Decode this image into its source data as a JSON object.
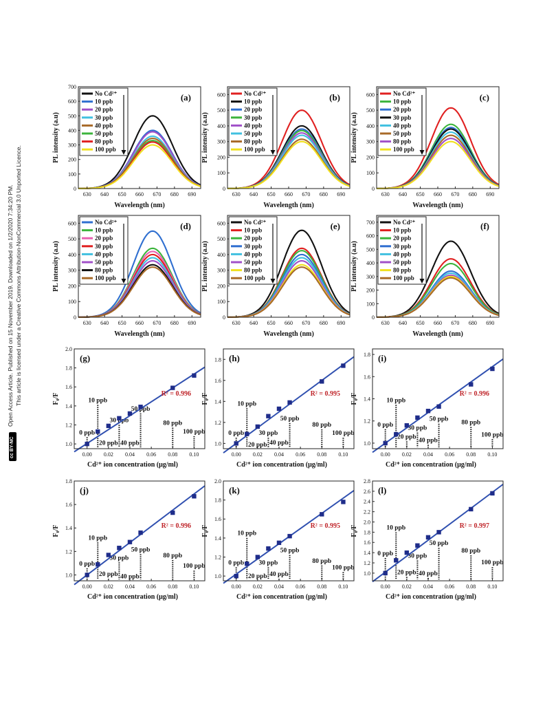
{
  "sidebar": {
    "line1": "Open Access Article. Published on 15 November 2019. Downloaded on 1/2/2020 7:34:20 PM.",
    "line2": "This article is licensed under a Creative Commons Attribution-NonCommercial 3.0 Unported Licence.",
    "badge": "cc BY-NC"
  },
  "colors": {
    "black": "#111111",
    "red": "#e02020",
    "blue": "#2f6fd0",
    "green": "#3cb43c",
    "purple": "#a050c8",
    "cyan": "#40c0e0",
    "brown": "#a86a28",
    "yellow": "#f0e020",
    "pink": "#e860b0",
    "fit": "#3050b0",
    "marker": "#1f2d8a",
    "r2": "#c0282d"
  },
  "chart_data": [
    {
      "type": "line",
      "panel": "(a)",
      "xlabel": "Wavelength (nm)",
      "ylabel": "PL intensity (a.u)",
      "xlim": [
        625,
        695
      ],
      "ylim": [
        0,
        700
      ],
      "xticks": [
        630,
        640,
        650,
        660,
        670,
        680,
        690
      ],
      "yticks": [
        0,
        100,
        200,
        300,
        400,
        500,
        600,
        700
      ],
      "legend_position": "top-left",
      "series": [
        {
          "name": "No Cd²⁺",
          "color": "black",
          "peak": 500
        },
        {
          "name": "10 ppb",
          "color": "blue",
          "peak": 400
        },
        {
          "name": "20 ppb",
          "color": "purple",
          "peak": 390
        },
        {
          "name": "30 ppb",
          "color": "cyan",
          "peak": 360
        },
        {
          "name": "40 ppb",
          "color": "brown",
          "peak": 345
        },
        {
          "name": "50 ppb",
          "color": "green",
          "peak": 330
        },
        {
          "name": "80 ppb",
          "color": "red",
          "peak": 320
        },
        {
          "name": "100 ppb",
          "color": "yellow",
          "peak": 300
        }
      ]
    },
    {
      "type": "line",
      "panel": "(b)",
      "xlabel": "Wavelength (nm)",
      "ylabel": "PL intensity (a.u)",
      "xlim": [
        625,
        695
      ],
      "ylim": [
        0,
        650
      ],
      "xticks": [
        630,
        640,
        650,
        660,
        670,
        680,
        690
      ],
      "yticks": [
        0,
        100,
        200,
        300,
        400,
        500,
        600
      ],
      "legend_position": "top-left",
      "series": [
        {
          "name": "No Cd²⁺",
          "color": "red",
          "peak": 500
        },
        {
          "name": "10 ppb",
          "color": "black",
          "peak": 400
        },
        {
          "name": "20 ppb",
          "color": "blue",
          "peak": 380
        },
        {
          "name": "30 ppb",
          "color": "green",
          "peak": 370
        },
        {
          "name": "40 ppb",
          "color": "purple",
          "peak": 355
        },
        {
          "name": "50 ppb",
          "color": "cyan",
          "peak": 340
        },
        {
          "name": "80 ppb",
          "color": "brown",
          "peak": 315
        },
        {
          "name": "100 ppb",
          "color": "yellow",
          "peak": 300
        }
      ]
    },
    {
      "type": "line",
      "panel": "(c)",
      "xlabel": "Wavelength (nm)",
      "ylabel": "PL intensity (a.u)",
      "xlim": [
        625,
        695
      ],
      "ylim": [
        0,
        650
      ],
      "xticks": [
        630,
        640,
        650,
        660,
        670,
        680,
        690
      ],
      "yticks": [
        0,
        100,
        200,
        300,
        400,
        500,
        600
      ],
      "legend_position": "top-left",
      "series": [
        {
          "name": "No Cd²⁺",
          "color": "red",
          "peak": 515
        },
        {
          "name": "10 ppb",
          "color": "green",
          "peak": 410
        },
        {
          "name": "20 ppb",
          "color": "blue",
          "peak": 390
        },
        {
          "name": "30 ppb",
          "color": "black",
          "peak": 380
        },
        {
          "name": "40 ppb",
          "color": "cyan",
          "peak": 360
        },
        {
          "name": "50 ppb",
          "color": "brown",
          "peak": 340
        },
        {
          "name": "80 ppb",
          "color": "purple",
          "peak": 320
        },
        {
          "name": "100 ppb",
          "color": "yellow",
          "peak": 300
        }
      ]
    },
    {
      "type": "line",
      "panel": "(d)",
      "xlabel": "Wavelength (nm)",
      "ylabel": "PL intensity (a.u)",
      "xlim": [
        625,
        695
      ],
      "ylim": [
        0,
        650
      ],
      "xticks": [
        630,
        640,
        650,
        660,
        670,
        680,
        690
      ],
      "yticks": [
        0,
        100,
        200,
        300,
        400,
        500,
        600
      ],
      "legend_position": "top-left",
      "series": [
        {
          "name": "No Cd²⁺",
          "color": "blue",
          "peak": 550
        },
        {
          "name": "10 ppb",
          "color": "green",
          "peak": 440
        },
        {
          "name": "20 ppb",
          "color": "pink",
          "peak": 420
        },
        {
          "name": "30 ppb",
          "color": "red",
          "peak": 400
        },
        {
          "name": "40 ppb",
          "color": "cyan",
          "peak": 380
        },
        {
          "name": "50 ppb",
          "color": "purple",
          "peak": 360
        },
        {
          "name": "80 ppb",
          "color": "black",
          "peak": 335
        },
        {
          "name": "100 ppb",
          "color": "brown",
          "peak": 320
        }
      ]
    },
    {
      "type": "line",
      "panel": "(e)",
      "xlabel": "Wavelength (nm)",
      "ylabel": "PL intensity (a.u)",
      "xlim": [
        625,
        695
      ],
      "ylim": [
        0,
        650
      ],
      "xticks": [
        630,
        640,
        650,
        660,
        670,
        680,
        690
      ],
      "yticks": [
        0,
        100,
        200,
        300,
        400,
        500,
        600
      ],
      "legend_position": "top-left",
      "series": [
        {
          "name": "No Cd²⁺",
          "color": "black",
          "peak": 555
        },
        {
          "name": "10 ppb",
          "color": "red",
          "peak": 440
        },
        {
          "name": "20 ppb",
          "color": "green",
          "peak": 425
        },
        {
          "name": "30 ppb",
          "color": "blue",
          "peak": 400
        },
        {
          "name": "40 ppb",
          "color": "cyan",
          "peak": 380
        },
        {
          "name": "50 ppb",
          "color": "purple",
          "peak": 360
        },
        {
          "name": "80 ppb",
          "color": "yellow",
          "peak": 335
        },
        {
          "name": "100 ppb",
          "color": "brown",
          "peak": 320
        }
      ]
    },
    {
      "type": "line",
      "panel": "(f)",
      "xlabel": "Wavelength (nm)",
      "ylabel": "PL intensity (a.u)",
      "xlim": [
        625,
        695
      ],
      "ylim": [
        0,
        750
      ],
      "xticks": [
        630,
        640,
        650,
        660,
        670,
        680,
        690
      ],
      "yticks": [
        0,
        100,
        200,
        300,
        400,
        500,
        600,
        700
      ],
      "legend_position": "top-left",
      "series": [
        {
          "name": "No Cd²⁺",
          "color": "black",
          "peak": 560
        },
        {
          "name": "10 ppb",
          "color": "red",
          "peak": 430
        },
        {
          "name": "20 ppb",
          "color": "green",
          "peak": 395
        },
        {
          "name": "30 ppb",
          "color": "blue",
          "peak": 340
        },
        {
          "name": "40 ppb",
          "color": "cyan",
          "peak": 325
        },
        {
          "name": "50 ppb",
          "color": "purple",
          "peak": 310
        },
        {
          "name": "80 ppb",
          "color": "yellow",
          "peak": 300
        },
        {
          "name": "100 ppb",
          "color": "brown",
          "peak": 290
        }
      ]
    },
    {
      "type": "scatter",
      "panel": "(g)",
      "xlabel": "Cd²⁺ ion concentration (μg/ml)",
      "ylabel": "F₀/F",
      "xlim": [
        -0.012,
        0.11
      ],
      "ylim": [
        0.95,
        2.0
      ],
      "xticks": [
        0.0,
        0.02,
        0.04,
        0.06,
        0.08,
        0.1
      ],
      "yticks": [
        1.0,
        1.2,
        1.4,
        1.6,
        1.8,
        2.0
      ],
      "x": [
        0.0,
        0.01,
        0.02,
        0.03,
        0.04,
        0.05,
        0.08,
        0.1
      ],
      "y": [
        1.0,
        1.13,
        1.19,
        1.27,
        1.32,
        1.39,
        1.59,
        1.72
      ],
      "fit": {
        "slope": 7.3,
        "intercept": 1.005,
        "r2_label": "R² = 0.996"
      },
      "annotations": [
        {
          "text": "0 ppb",
          "x": 0.0,
          "label_y": 1.1
        },
        {
          "text": "10 ppb",
          "x": 0.01,
          "label_y": 1.44
        },
        {
          "text": "20 ppb",
          "x": 0.02,
          "label_y": 0.99
        },
        {
          "text": "30 ppb",
          "x": 0.03,
          "label_y": 1.23
        },
        {
          "text": "40 ppb",
          "x": 0.04,
          "label_y": 0.99
        },
        {
          "text": "50 ppb",
          "x": 0.05,
          "label_y": 1.35
        },
        {
          "text": "80 ppb",
          "x": 0.08,
          "label_y": 1.2
        },
        {
          "text": "100 ppb",
          "x": 0.1,
          "label_y": 1.11
        }
      ]
    },
    {
      "type": "scatter",
      "panel": "(h)",
      "xlabel": "Cd²⁺ ion concentration (μg/ml)",
      "ylabel": "F₀/F",
      "xlim": [
        -0.012,
        0.11
      ],
      "ylim": [
        0.95,
        1.9
      ],
      "xticks": [
        0.0,
        0.02,
        0.04,
        0.06,
        0.08,
        0.1
      ],
      "yticks": [
        1.0,
        1.2,
        1.4,
        1.6,
        1.8
      ],
      "x": [
        0.0,
        0.01,
        0.02,
        0.03,
        0.04,
        0.05,
        0.08,
        0.1
      ],
      "y": [
        1.0,
        1.09,
        1.16,
        1.26,
        1.33,
        1.39,
        1.59,
        1.74
      ],
      "fit": {
        "slope": 7.5,
        "intercept": 1.0,
        "r2_label": "R² = 0.995"
      },
      "annotations": [
        {
          "text": "0 ppb",
          "x": 0.0,
          "label_y": 1.08
        },
        {
          "text": "10 ppb",
          "x": 0.01,
          "label_y": 1.36
        },
        {
          "text": "20 ppb",
          "x": 0.02,
          "label_y": 0.97
        },
        {
          "text": "30 ppb",
          "x": 0.03,
          "label_y": 1.08
        },
        {
          "text": "40 ppb",
          "x": 0.04,
          "label_y": 0.99
        },
        {
          "text": "50 ppb",
          "x": 0.05,
          "label_y": 1.22
        },
        {
          "text": "80 ppb",
          "x": 0.08,
          "label_y": 1.16
        },
        {
          "text": "100 ppb",
          "x": 0.1,
          "label_y": 1.08
        }
      ]
    },
    {
      "type": "scatter",
      "panel": "(i)",
      "xlabel": "Cd²⁺ ion concentration (μg/ml)",
      "ylabel": "F₀/F",
      "xlim": [
        -0.012,
        0.11
      ],
      "ylim": [
        0.95,
        1.85
      ],
      "xticks": [
        0.0,
        0.02,
        0.04,
        0.06,
        0.08,
        0.1
      ],
      "yticks": [
        1.0,
        1.2,
        1.4,
        1.6,
        1.8
      ],
      "x": [
        0.0,
        0.01,
        0.02,
        0.03,
        0.04,
        0.05,
        0.08,
        0.1
      ],
      "y": [
        1.0,
        1.08,
        1.16,
        1.23,
        1.29,
        1.33,
        1.53,
        1.67
      ],
      "fit": {
        "slope": 6.9,
        "intercept": 1.0,
        "r2_label": "R² = 0.996"
      },
      "annotations": [
        {
          "text": "0 ppb",
          "x": 0.0,
          "label_y": 1.15
        },
        {
          "text": "10 ppb",
          "x": 0.01,
          "label_y": 1.37
        },
        {
          "text": "20 ppb",
          "x": 0.02,
          "label_y": 1.04
        },
        {
          "text": "30 ppb",
          "x": 0.03,
          "label_y": 1.12
        },
        {
          "text": "40 ppb",
          "x": 0.04,
          "label_y": 1.01
        },
        {
          "text": "50 ppb",
          "x": 0.05,
          "label_y": 1.2
        },
        {
          "text": "80 ppb",
          "x": 0.08,
          "label_y": 1.17
        },
        {
          "text": "100 ppb",
          "x": 0.1,
          "label_y": 1.06
        }
      ]
    },
    {
      "type": "scatter",
      "panel": "(j)",
      "xlabel": "Cd²⁺ ion concentration (μg/ml)",
      "ylabel": "F₀/F",
      "xlim": [
        -0.012,
        0.11
      ],
      "ylim": [
        0.95,
        1.8
      ],
      "xticks": [
        0.0,
        0.02,
        0.04,
        0.06,
        0.08,
        0.1
      ],
      "yticks": [
        1.0,
        1.2,
        1.4,
        1.6,
        1.8
      ],
      "x": [
        0.0,
        0.01,
        0.02,
        0.03,
        0.04,
        0.05,
        0.08,
        0.1
      ],
      "y": [
        1.0,
        1.09,
        1.17,
        1.23,
        1.28,
        1.36,
        1.53,
        1.67
      ],
      "fit": {
        "slope": 6.9,
        "intercept": 1.0,
        "r2_label": "R² = 0.996"
      },
      "annotations": [
        {
          "text": "0 ppb",
          "x": 0.0,
          "label_y": 1.08
        },
        {
          "text": "10 ppb",
          "x": 0.01,
          "label_y": 1.3
        },
        {
          "text": "20 ppb",
          "x": 0.02,
          "label_y": 0.99
        },
        {
          "text": "30 ppb",
          "x": 0.03,
          "label_y": 1.13
        },
        {
          "text": "40 ppb",
          "x": 0.04,
          "label_y": 0.97
        },
        {
          "text": "50 ppb",
          "x": 0.05,
          "label_y": 1.2
        },
        {
          "text": "80 ppb",
          "x": 0.08,
          "label_y": 1.15
        },
        {
          "text": "100 ppb",
          "x": 0.1,
          "label_y": 1.06
        }
      ]
    },
    {
      "type": "scatter",
      "panel": "(k)",
      "xlabel": "Cd²⁺ ion concentration (μg/ml)",
      "ylabel": "F₀/F",
      "xlim": [
        -0.012,
        0.11
      ],
      "ylim": [
        0.95,
        2.0
      ],
      "xticks": [
        0.0,
        0.02,
        0.04,
        0.06,
        0.08,
        0.1
      ],
      "yticks": [
        1.0,
        1.2,
        1.4,
        1.6,
        1.8,
        2.0
      ],
      "x": [
        0.0,
        0.01,
        0.02,
        0.03,
        0.04,
        0.05,
        0.08,
        0.1
      ],
      "y": [
        1.0,
        1.13,
        1.2,
        1.29,
        1.35,
        1.42,
        1.65,
        1.78
      ],
      "fit": {
        "slope": 8.0,
        "intercept": 1.02,
        "r2_label": "R² = 0.995"
      },
      "annotations": [
        {
          "text": "0 ppb",
          "x": 0.0,
          "label_y": 1.12
        },
        {
          "text": "10 ppb",
          "x": 0.01,
          "label_y": 1.43
        },
        {
          "text": "20 ppb",
          "x": 0.02,
          "label_y": 0.98
        },
        {
          "text": "30 ppb",
          "x": 0.03,
          "label_y": 1.12
        },
        {
          "text": "40 ppb",
          "x": 0.04,
          "label_y": 1.0
        },
        {
          "text": "50 ppb",
          "x": 0.05,
          "label_y": 1.25
        },
        {
          "text": "80 ppb",
          "x": 0.08,
          "label_y": 1.14
        },
        {
          "text": "100 ppb",
          "x": 0.1,
          "label_y": 1.07
        }
      ]
    },
    {
      "type": "scatter",
      "panel": "(l)",
      "xlabel": "Cd²⁺ ion concentration (μg/ml)",
      "ylabel": "F₀/F",
      "xlim": [
        -0.012,
        0.11
      ],
      "ylim": [
        0.85,
        2.8
      ],
      "xticks": [
        0.0,
        0.02,
        0.04,
        0.06,
        0.08,
        0.1
      ],
      "yticks": [
        1.0,
        1.2,
        1.4,
        1.6,
        1.8,
        2.0,
        2.2,
        2.4,
        2.6,
        2.8
      ],
      "x": [
        0.0,
        0.01,
        0.02,
        0.03,
        0.04,
        0.05,
        0.08,
        0.1
      ],
      "y": [
        1.0,
        1.25,
        1.4,
        1.54,
        1.7,
        1.8,
        2.25,
        2.56
      ],
      "fit": {
        "slope": 15.6,
        "intercept": 1.02,
        "r2_label": "R² = 0.997"
      },
      "annotations": [
        {
          "text": "0 ppb",
          "x": 0.0,
          "label_y": 1.35
        },
        {
          "text": "10 ppb",
          "x": 0.01,
          "label_y": 1.85
        },
        {
          "text": "20 ppb",
          "x": 0.02,
          "label_y": 0.98
        },
        {
          "text": "30 ppb",
          "x": 0.03,
          "label_y": 1.3
        },
        {
          "text": "40 ppb",
          "x": 0.04,
          "label_y": 0.96
        },
        {
          "text": "50 ppb",
          "x": 0.05,
          "label_y": 1.55
        },
        {
          "text": "80 ppb",
          "x": 0.08,
          "label_y": 1.4
        },
        {
          "text": "100 ppb",
          "x": 0.1,
          "label_y": 1.17
        }
      ]
    }
  ]
}
